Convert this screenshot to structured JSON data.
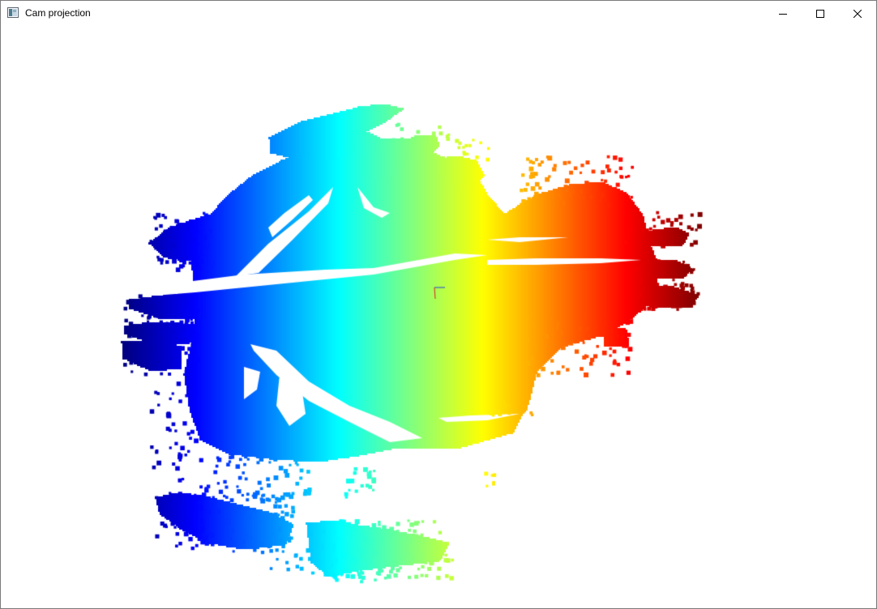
{
  "window": {
    "title": "Cam projection",
    "icon": "app-window-icon"
  },
  "titlebar_buttons": {
    "minimize_icon": "minimize-icon",
    "maximize_icon": "maximize-icon",
    "close_icon": "close-icon"
  },
  "viewport": {
    "content": "point-cloud-render",
    "colormap": "jet",
    "colormap_axis": "horizontal",
    "axes_gizmo_colors": [
      "#e0201f",
      "#2040e0"
    ]
  }
}
